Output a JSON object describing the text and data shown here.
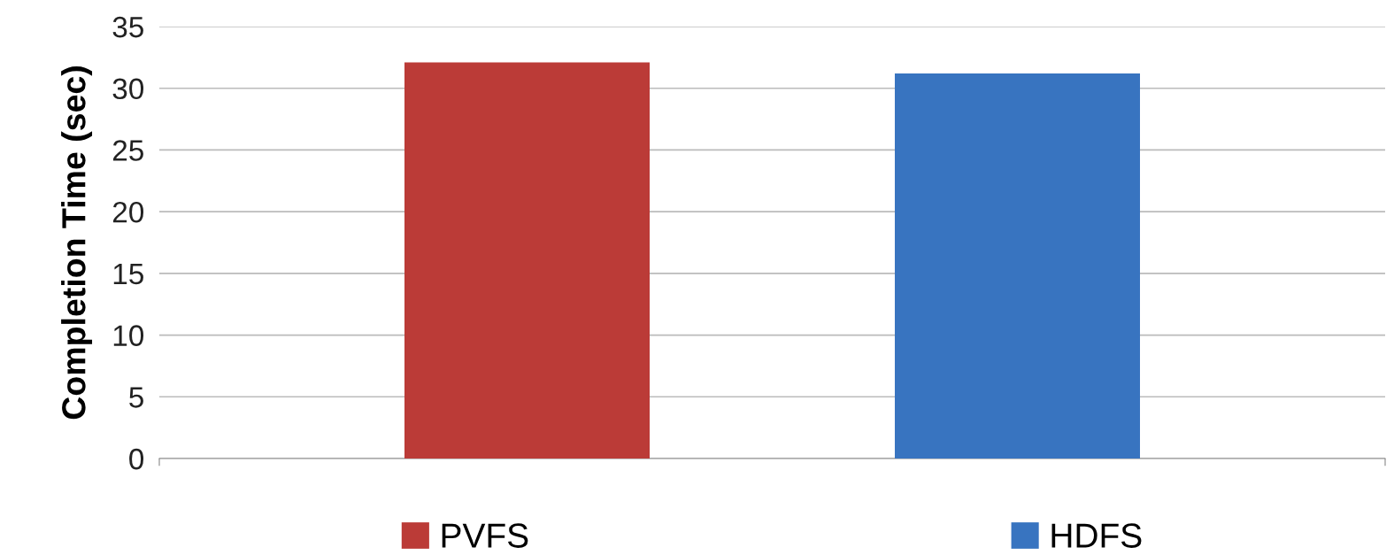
{
  "chart_data": {
    "type": "bar",
    "ylabel": "Completion Time (sec)",
    "categories": [
      null
    ],
    "series": [
      {
        "name": "PVFS",
        "color": "#bb3b37",
        "values": [
          32.1
        ]
      },
      {
        "name": "HDFS",
        "color": "#3874c0",
        "values": [
          31.2
        ]
      }
    ],
    "ylim": [
      0,
      35
    ],
    "yticks": [
      0,
      5,
      10,
      15,
      20,
      25,
      30,
      35
    ],
    "grid": "y",
    "legend": "bottom"
  }
}
